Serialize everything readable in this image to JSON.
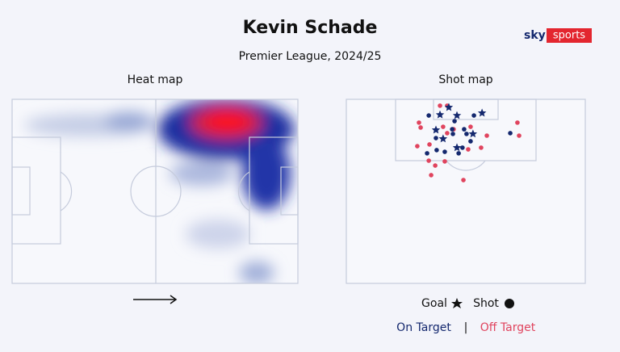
{
  "header": {
    "title": "Kevin Schade",
    "subtitle": "Premier League, 2024/25",
    "brand_sky": "sky",
    "brand_sports": "sports"
  },
  "heat_map": {
    "title": "Heat map"
  },
  "chart_data": {
    "type": "scatter",
    "title": "Shot map",
    "xlim": [
      0,
      100
    ],
    "ylim": [
      0,
      75
    ],
    "shot_label": "Shot",
    "separator": "|",
    "series": [
      {
        "name": "Goal",
        "color": "#14286e",
        "marker": "star",
        "x": [
          42.9,
          39.2,
          56.8,
          46.3,
          37.5,
          40.5,
          53.0,
          46.3
        ],
        "y": [
          3.3,
          6.3,
          5.6,
          6.6,
          12.5,
          16.1,
          14.1,
          19.7
        ]
      },
      {
        "name": "On Target",
        "color": "#14286e",
        "marker": "circle",
        "x": [
          34.5,
          53.4,
          45.3,
          44.3,
          49.3,
          37.5,
          44.6,
          50.3,
          52.0,
          68.6,
          37.8,
          41.2,
          48.6,
          33.8,
          47.0
        ],
        "y": [
          6.6,
          6.6,
          8.9,
          12.2,
          12.2,
          15.8,
          14.1,
          14.1,
          17.1,
          13.8,
          20.7,
          21.4,
          19.7,
          22.0,
          22.0
        ]
      },
      {
        "name": "Off Target",
        "color": "#e0445e",
        "marker": "circle",
        "x": [
          39.2,
          42.2,
          30.4,
          31.1,
          40.5,
          44.9,
          52.0,
          71.6,
          72.3,
          58.8,
          29.7,
          56.4,
          42.2,
          34.8,
          34.5,
          41.2,
          37.2,
          35.5,
          49.0,
          51.0
        ],
        "y": [
          2.6,
          2.6,
          9.5,
          11.5,
          11.2,
          12.2,
          11.2,
          9.5,
          14.8,
          14.8,
          19.1,
          19.7,
          13.8,
          18.4,
          25.0,
          25.3,
          27.0,
          30.9,
          32.9,
          20.4
        ]
      }
    ]
  }
}
